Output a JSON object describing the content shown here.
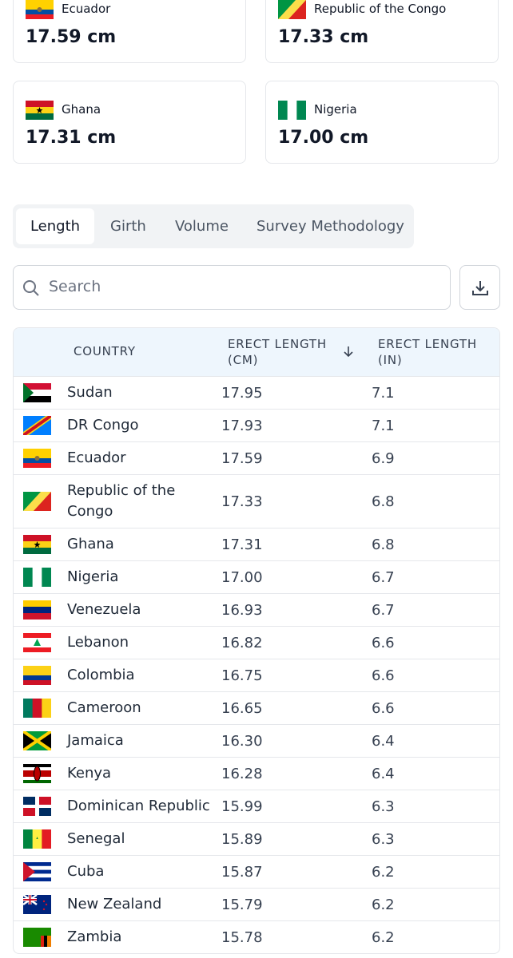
{
  "cards": [
    {
      "country": "Ecuador",
      "value": "17.59 cm"
    },
    {
      "country": "Republic of the Congo",
      "value": "17.33 cm"
    },
    {
      "country": "Ghana",
      "value": "17.31 cm"
    },
    {
      "country": "Nigeria",
      "value": "17.00 cm"
    }
  ],
  "tabs": [
    "Length",
    "Girth",
    "Volume",
    "Survey Methodology"
  ],
  "search": "Search",
  "table": {
    "headers": [
      "COUNTRY",
      "ERECT LENGTH (CM)",
      "ERECT LENGTH (IN)"
    ],
    "rows": [
      [
        "Sudan",
        "17.95",
        "7.1"
      ],
      [
        "DR Congo",
        "17.93",
        "7.1"
      ],
      [
        "Ecuador",
        "17.59",
        "6.9"
      ],
      [
        "Republic of the Congo",
        "17.33",
        "6.8"
      ],
      [
        "Ghana",
        "17.31",
        "6.8"
      ],
      [
        "Nigeria",
        "17.00",
        "6.7"
      ],
      [
        "Venezuela",
        "16.93",
        "6.7"
      ],
      [
        "Lebanon",
        "16.82",
        "6.6"
      ],
      [
        "Colombia",
        "16.75",
        "6.6"
      ],
      [
        "Cameroon",
        "16.65",
        "6.6"
      ],
      [
        "Jamaica",
        "16.30",
        "6.4"
      ],
      [
        "Kenya",
        "16.28",
        "6.4"
      ],
      [
        "Dominican Republic",
        "15.99",
        "6.3"
      ],
      [
        "Senegal",
        "15.89",
        "6.3"
      ],
      [
        "Cuba",
        "15.87",
        "6.2"
      ],
      [
        "New Zealand",
        "15.79",
        "6.2"
      ],
      [
        "Zambia",
        "15.78",
        "6.2"
      ]
    ]
  }
}
